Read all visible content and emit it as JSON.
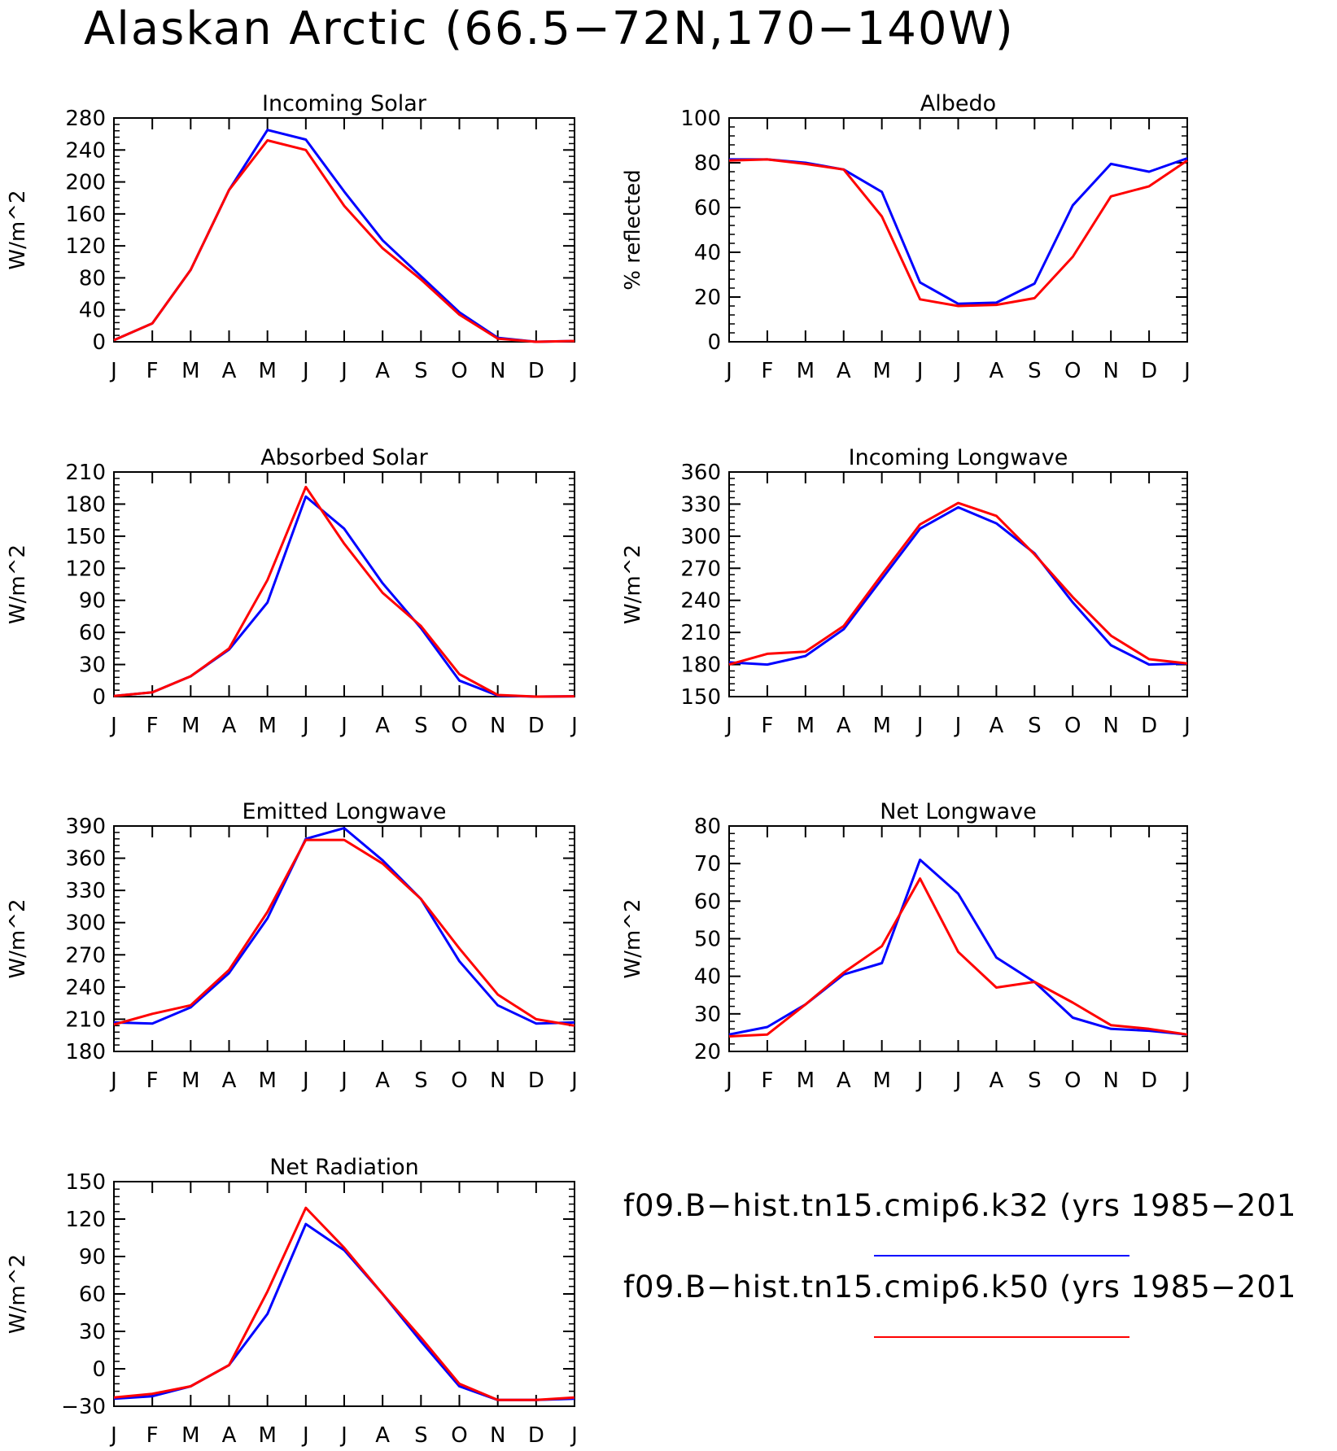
{
  "title": "Alaskan Arctic (66.5−72N,170−140W)",
  "colors": {
    "k32": "#0000ff",
    "k50": "#ff0000"
  },
  "legend": [
    {
      "label": "f09.B−hist.tn15.cmip6.k32 (yrs 1985−201",
      "color": "#0000ff"
    },
    {
      "label": "f09.B−hist.tn15.cmip6.k50 (yrs 1985−201",
      "color": "#ff0000"
    }
  ],
  "chart_data": [
    {
      "type": "line",
      "title": "Incoming Solar",
      "ylabel": "W/m^2",
      "x": [
        "J",
        "F",
        "M",
        "A",
        "M",
        "J",
        "J",
        "A",
        "S",
        "O",
        "N",
        "D",
        "J"
      ],
      "ylim": [
        0,
        280
      ],
      "yticks": [
        0,
        40,
        80,
        120,
        160,
        200,
        240,
        280
      ],
      "series": [
        {
          "name": "f09.B−hist.tn15.cmip6.k32",
          "color": "#0000ff",
          "values": [
            2,
            23,
            90,
            190,
            265,
            253,
            188,
            127,
            82,
            37,
            5,
            0,
            1
          ]
        },
        {
          "name": "f09.B−hist.tn15.cmip6.k50",
          "color": "#ff0000",
          "values": [
            2,
            23,
            90,
            190,
            252,
            240,
            170,
            117,
            78,
            34,
            4,
            0,
            1
          ]
        }
      ]
    },
    {
      "type": "line",
      "title": "Albedo",
      "ylabel": "% reflected",
      "x": [
        "J",
        "F",
        "M",
        "A",
        "M",
        "J",
        "J",
        "A",
        "S",
        "O",
        "N",
        "D",
        "J"
      ],
      "ylim": [
        0,
        100
      ],
      "yticks": [
        0,
        20,
        40,
        60,
        80,
        100
      ],
      "series": [
        {
          "name": "f09.B−hist.tn15.cmip6.k32",
          "color": "#0000ff",
          "values": [
            81.5,
            81.5,
            80,
            77,
            67,
            26.5,
            17,
            17.5,
            26,
            61,
            79.5,
            76,
            82
          ]
        },
        {
          "name": "f09.B−hist.tn15.cmip6.k50",
          "color": "#ff0000",
          "values": [
            81,
            81.5,
            79.5,
            77,
            56,
            19,
            16,
            16.5,
            19.5,
            38,
            65,
            69.5,
            81
          ]
        }
      ]
    },
    {
      "type": "line",
      "title": "Absorbed Solar",
      "ylabel": "W/m^2",
      "x": [
        "J",
        "F",
        "M",
        "A",
        "M",
        "J",
        "J",
        "A",
        "S",
        "O",
        "N",
        "D",
        "J"
      ],
      "ylim": [
        0,
        210
      ],
      "yticks": [
        0,
        30,
        60,
        90,
        120,
        150,
        180,
        210
      ],
      "series": [
        {
          "name": "f09.B−hist.tn15.cmip6.k32",
          "color": "#0000ff",
          "values": [
            0.5,
            4,
            19,
            44,
            88,
            187,
            157,
            106,
            64,
            15,
            1,
            0,
            0.3
          ]
        },
        {
          "name": "f09.B−hist.tn15.cmip6.k50",
          "color": "#ff0000",
          "values": [
            0.5,
            4,
            19,
            45,
            109,
            196,
            143,
            97,
            66,
            21,
            1.5,
            0,
            0.3
          ]
        }
      ]
    },
    {
      "type": "line",
      "title": "Incoming Longwave",
      "ylabel": "W/m^2",
      "x": [
        "J",
        "F",
        "M",
        "A",
        "M",
        "J",
        "J",
        "A",
        "S",
        "O",
        "N",
        "D",
        "J"
      ],
      "ylim": [
        150,
        360
      ],
      "yticks": [
        150,
        180,
        210,
        240,
        270,
        300,
        330,
        360
      ],
      "series": [
        {
          "name": "f09.B−hist.tn15.cmip6.k32",
          "color": "#0000ff",
          "values": [
            182,
            180,
            188,
            213,
            260,
            307,
            327,
            312,
            284,
            238,
            198,
            180,
            181
          ]
        },
        {
          "name": "f09.B−hist.tn15.cmip6.k50",
          "color": "#ff0000",
          "values": [
            180,
            190,
            192,
            216,
            264,
            311,
            331,
            319,
            283,
            243,
            207,
            185,
            181
          ]
        }
      ]
    },
    {
      "type": "line",
      "title": "Emitted Longwave",
      "ylabel": "W/m^2",
      "x": [
        "J",
        "F",
        "M",
        "A",
        "M",
        "J",
        "J",
        "A",
        "S",
        "O",
        "N",
        "D",
        "J"
      ],
      "ylim": [
        180,
        390
      ],
      "yticks": [
        180,
        210,
        240,
        270,
        300,
        330,
        360,
        390
      ],
      "series": [
        {
          "name": "f09.B−hist.tn15.cmip6.k32",
          "color": "#0000ff",
          "values": [
            207,
            206,
            221,
            253,
            304,
            378,
            388,
            358,
            322,
            264,
            223,
            206,
            207
          ]
        },
        {
          "name": "f09.B−hist.tn15.cmip6.k50",
          "color": "#ff0000",
          "values": [
            205,
            215,
            223,
            256,
            310,
            377,
            377,
            355,
            322,
            276,
            233,
            210,
            204
          ]
        }
      ]
    },
    {
      "type": "line",
      "title": "Net Longwave",
      "ylabel": "W/m^2",
      "x": [
        "J",
        "F",
        "M",
        "A",
        "M",
        "J",
        "J",
        "A",
        "S",
        "O",
        "N",
        "D",
        "J"
      ],
      "ylim": [
        20,
        80
      ],
      "yticks": [
        20,
        30,
        40,
        50,
        60,
        70,
        80
      ],
      "series": [
        {
          "name": "f09.B−hist.tn15.cmip6.k32",
          "color": "#0000ff",
          "values": [
            24.5,
            26.5,
            32.5,
            40.5,
            43.5,
            71,
            62,
            45,
            38.5,
            29,
            26,
            25.5,
            24.5
          ]
        },
        {
          "name": "f09.B−hist.tn15.cmip6.k50",
          "color": "#ff0000",
          "values": [
            24,
            24.5,
            32.5,
            41,
            48,
            66,
            46.5,
            37,
            38.5,
            33,
            27,
            26,
            24.5
          ]
        }
      ]
    },
    {
      "type": "line",
      "title": "Net Radiation",
      "ylabel": "W/m^2",
      "x": [
        "J",
        "F",
        "M",
        "A",
        "M",
        "J",
        "J",
        "A",
        "S",
        "O",
        "N",
        "D",
        "J"
      ],
      "ylim": [
        -30,
        150
      ],
      "yticks": [
        -30,
        0,
        30,
        60,
        90,
        120,
        150
      ],
      "series": [
        {
          "name": "f09.B−hist.tn15.cmip6.k32",
          "color": "#0000ff",
          "values": [
            -24,
            -22,
            -14,
            3,
            44,
            116,
            95,
            60,
            22,
            -14,
            -25,
            -25,
            -24
          ]
        },
        {
          "name": "f09.B−hist.tn15.cmip6.k50",
          "color": "#ff0000",
          "values": [
            -23,
            -20,
            -14,
            3,
            62,
            129,
            97,
            60,
            25,
            -12,
            -25,
            -25,
            -23
          ]
        }
      ]
    }
  ]
}
